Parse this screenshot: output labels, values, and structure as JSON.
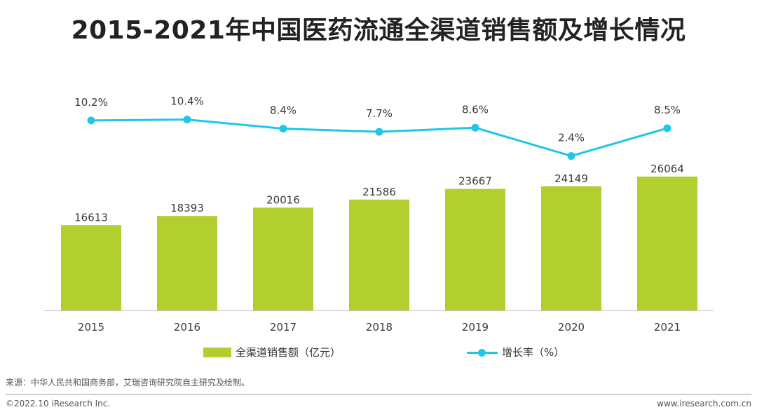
{
  "title": "2015-2021年中国医药流通全渠道销售额及增长情况",
  "legend": {
    "bar_label": "全渠道销售额（亿元）",
    "line_label": "增长率（%）"
  },
  "source": "来源：中华人民共和国商务部，艾瑞咨询研究院自主研究及绘制。",
  "footer": {
    "copyright": "©2022.10 iResearch Inc.",
    "website": "www.iresearch.com.cn"
  },
  "colors": {
    "bar": "#b1cf2f",
    "line": "#1ec6ec"
  },
  "chart_data": {
    "type": "bar",
    "title": "2015-2021年中国医药流通全渠道销售额及增长情况",
    "categories": [
      "2015",
      "2016",
      "2017",
      "2018",
      "2019",
      "2020",
      "2021"
    ],
    "series": [
      {
        "name": "全渠道销售额（亿元）",
        "type": "bar",
        "values": [
          16613,
          18393,
          20016,
          21586,
          23667,
          24149,
          26064
        ],
        "labels": [
          "16613",
          "18393",
          "20016",
          "21586",
          "23667",
          "24149",
          "26064"
        ]
      },
      {
        "name": "增长率（%）",
        "type": "line",
        "values": [
          10.2,
          10.4,
          8.4,
          7.7,
          8.6,
          2.4,
          8.5
        ],
        "labels": [
          "10.2%",
          "10.4%",
          "8.4%",
          "7.7%",
          "8.6%",
          "2.4%",
          "8.5%"
        ]
      }
    ],
    "xlabel": "",
    "ylabel": "",
    "grid": false,
    "legend_position": "bottom"
  }
}
